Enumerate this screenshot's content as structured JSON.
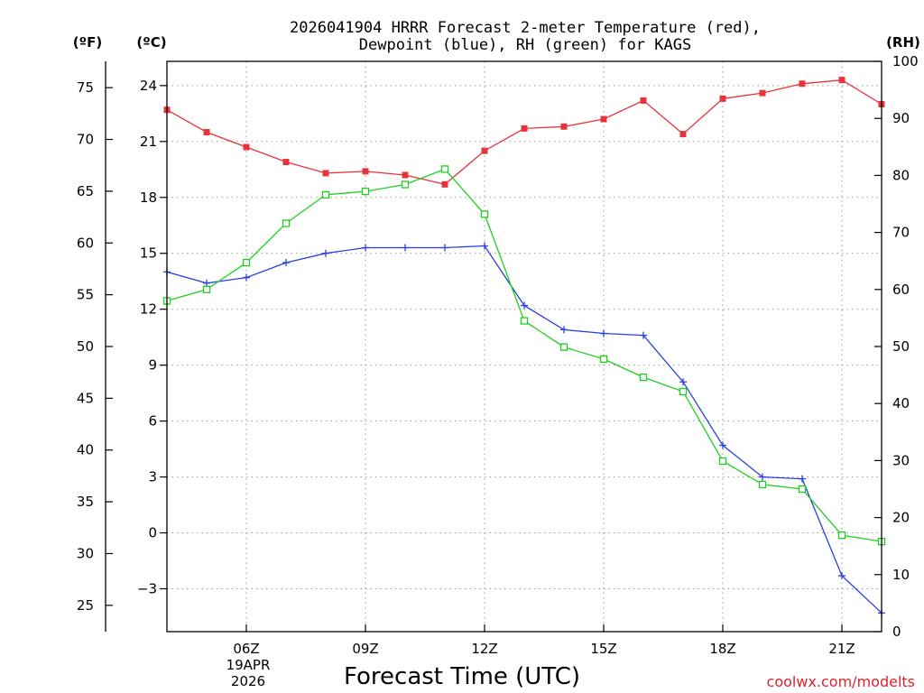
{
  "chart_data": {
    "type": "line",
    "title_line1": "2026041904 HRRR Forecast 2-meter Temperature (red),",
    "title_line2": "Dewpoint (blue), RH (green) for KAGS",
    "xlabel": "Forecast Time (UTC)",
    "credit": "coolwx.com/modelts",
    "date_label_day": "19APR",
    "date_label_year": "2026",
    "units": {
      "fahrenheit": "(ºF)",
      "celsius": "(ºC)",
      "rh": "(RH)"
    },
    "x_hours": [
      4,
      5,
      6,
      7,
      8,
      9,
      10,
      11,
      12,
      13,
      14,
      15,
      16,
      17,
      18,
      19,
      20,
      21,
      22
    ],
    "xlim": [
      4,
      22
    ],
    "x_ticks": [
      {
        "hour": 6,
        "label": "06Z"
      },
      {
        "hour": 9,
        "label": "09Z"
      },
      {
        "hour": 12,
        "label": "12Z"
      },
      {
        "hour": 15,
        "label": "15Z"
      },
      {
        "hour": 18,
        "label": "18Z"
      },
      {
        "hour": 21,
        "label": "21Z"
      }
    ],
    "celsius_range": [
      -5.3,
      25.3
    ],
    "celsius_ticks": [
      "24",
      "21",
      "18",
      "15",
      "12",
      "9",
      "6",
      "3",
      "0",
      "−3"
    ],
    "fahrenheit_ticks": [
      "75",
      "70",
      "65",
      "60",
      "55",
      "50",
      "45",
      "40",
      "35",
      "30",
      "25"
    ],
    "rh_range": [
      0,
      100
    ],
    "rh_ticks": [
      "100",
      "90",
      "80",
      "70",
      "60",
      "50",
      "40",
      "30",
      "20",
      "10",
      "0"
    ],
    "colors": {
      "temperature": "#e8333c",
      "dewpoint": "#2b3fe0",
      "rh": "#1ed01e",
      "credit": "#e0202a"
    },
    "series": [
      {
        "name": "Temperature",
        "units": "°C",
        "values": [
          22.7,
          21.5,
          20.7,
          19.9,
          19.3,
          19.4,
          19.2,
          18.7,
          20.5,
          21.7,
          21.8,
          22.2,
          23.2,
          21.4,
          23.3,
          23.6,
          24.1,
          24.3,
          23.0
        ]
      },
      {
        "name": "Dewpoint",
        "units": "°C",
        "values": [
          14.0,
          13.4,
          13.7,
          14.5,
          15.0,
          15.3,
          15.3,
          15.3,
          15.4,
          12.2,
          10.9,
          10.7,
          10.6,
          8.1,
          4.7,
          3.0,
          2.9,
          -2.3,
          -4.3
        ]
      },
      {
        "name": "RH",
        "units": "%",
        "values": [
          58.0,
          60.0,
          64.7,
          71.6,
          76.6,
          77.2,
          78.4,
          81.1,
          73.2,
          54.5,
          49.9,
          47.8,
          44.6,
          42.1,
          29.9,
          25.8,
          25.0,
          16.9,
          15.8
        ]
      }
    ]
  }
}
